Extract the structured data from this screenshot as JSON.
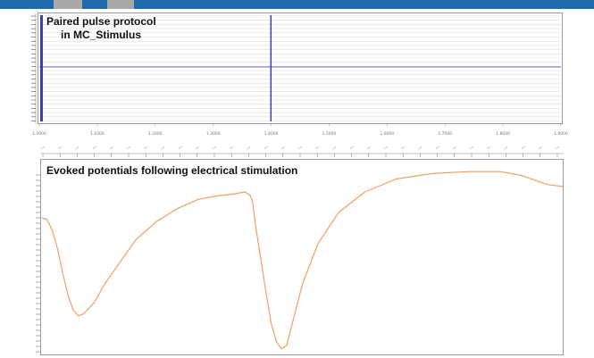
{
  "header": {
    "accent_color": "#1f6aa8",
    "tab_color": "#a9a9a9"
  },
  "chart_data": [
    {
      "type": "line",
      "title": "Paired pulse protocol",
      "subtitle": "in MC_Stimulus",
      "xlim": [
        1.0,
        1.9
      ],
      "x_ticks": [
        "1.0000",
        "1.1000",
        "1.2000",
        "1.3000",
        "1.4000",
        "1.5000",
        "1.6000",
        "1.7000",
        "1.8000",
        "1.9000"
      ],
      "pulse_x": [
        1.0,
        1.4
      ],
      "grid": true,
      "line_color": "#3b3fb0",
      "grid_color": "#dcdcdc"
    },
    {
      "type": "line",
      "title": "Evoked potentials following electrical stimulation",
      "xlim": [
        0,
        100
      ],
      "ylim": [
        0,
        100
      ],
      "grid": false,
      "line_color": "#f0a064",
      "series": [
        {
          "x": [
            0,
            1,
            2,
            3,
            4,
            5,
            6,
            7,
            8,
            10,
            12,
            15,
            18,
            22,
            26,
            30,
            34,
            37,
            39,
            40,
            40.5,
            41,
            42,
            43,
            44,
            45,
            46,
            47,
            48,
            50,
            53,
            57,
            62,
            68,
            75,
            82,
            88,
            92,
            95,
            97,
            100
          ],
          "y": [
            72,
            71,
            65,
            55,
            42,
            30,
            22,
            19,
            20,
            26,
            36,
            48,
            60,
            70,
            77,
            82,
            84,
            85,
            86,
            84,
            80,
            68,
            50,
            32,
            15,
            5,
            1,
            3,
            14,
            36,
            58,
            75,
            86,
            93,
            96,
            97,
            97,
            95,
            92,
            90,
            89
          ]
        }
      ]
    }
  ]
}
